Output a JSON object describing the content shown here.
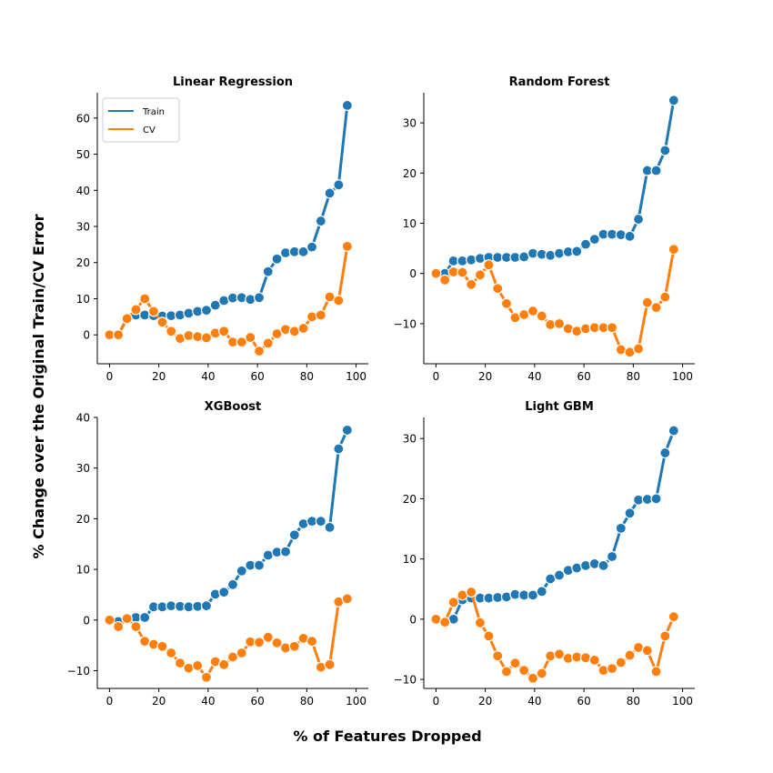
{
  "xlabel": "% of Features Dropped",
  "ylabel": "% Change over the Original Train/CV Error",
  "colors": {
    "train": "#1f77b4",
    "cv": "#ff7f0e"
  },
  "chart_data": [
    {
      "type": "line",
      "title": "Linear Regression",
      "xlim": [
        0,
        100
      ],
      "ylim": [
        -8,
        67
      ],
      "xticks": [
        0,
        20,
        40,
        60,
        80,
        100
      ],
      "yticks": [
        0,
        10,
        20,
        30,
        40,
        50,
        60
      ],
      "legend": "top-left",
      "x": [
        0,
        3.6,
        7.1,
        10.7,
        14.3,
        17.9,
        21.4,
        25,
        28.6,
        32.1,
        35.7,
        39.3,
        42.9,
        46.4,
        50,
        53.6,
        57.1,
        60.7,
        64.3,
        67.9,
        71.4,
        75,
        78.6,
        82.1,
        85.7,
        89.3,
        92.9,
        96.4
      ],
      "series": [
        {
          "name": "Train",
          "values": [
            0,
            0.2,
            4.5,
            5.5,
            5.5,
            5.3,
            5.2,
            5.3,
            5.5,
            6,
            6.5,
            6.8,
            8.2,
            9.5,
            10.2,
            10.3,
            9.8,
            10.3,
            17.5,
            21,
            22.7,
            23,
            23,
            24.3,
            31.5,
            39.2,
            41.5,
            63.5
          ]
        },
        {
          "name": "CV",
          "values": [
            0,
            0,
            4.5,
            7,
            10,
            6.5,
            3.5,
            1,
            -1,
            -0.2,
            -0.5,
            -0.8,
            0.5,
            1,
            -2,
            -2,
            -0.7,
            -4.5,
            -2.3,
            0.3,
            1.5,
            1,
            1.8,
            5,
            5.5,
            10.5,
            9.5,
            24.5
          ]
        }
      ]
    },
    {
      "type": "line",
      "title": "Random Forest",
      "xlim": [
        0,
        100
      ],
      "ylim": [
        -18,
        36
      ],
      "xticks": [
        0,
        20,
        40,
        60,
        80,
        100
      ],
      "yticks": [
        -10,
        0,
        10,
        20,
        30
      ],
      "x": [
        0,
        3.6,
        7.1,
        10.7,
        14.3,
        17.9,
        21.4,
        25,
        28.6,
        32.1,
        35.7,
        39.3,
        42.9,
        46.4,
        50,
        53.6,
        57.1,
        60.7,
        64.3,
        67.9,
        71.4,
        75,
        78.6,
        82.1,
        85.7,
        89.3,
        92.9,
        96.4
      ],
      "series": [
        {
          "name": "Train",
          "values": [
            0,
            0,
            2.5,
            2.5,
            2.7,
            3,
            3.2,
            3.2,
            3.2,
            3.2,
            3.3,
            4,
            3.8,
            3.6,
            4,
            4.3,
            4.4,
            5.8,
            6.8,
            7.8,
            7.8,
            7.7,
            7.4,
            10.8,
            20.5,
            20.5,
            24.5,
            34.5
          ]
        },
        {
          "name": "CV",
          "values": [
            0,
            -1.3,
            0.3,
            0.2,
            -2.2,
            -0.3,
            1.7,
            -3,
            -6,
            -8.8,
            -8.2,
            -7.5,
            -8.5,
            -10.2,
            -10,
            -11,
            -11.5,
            -11,
            -10.8,
            -10.8,
            -10.8,
            -15.2,
            -15.7,
            -15,
            -5.8,
            -6.8,
            -4.7,
            4.8
          ]
        }
      ]
    },
    {
      "type": "line",
      "title": "XGBoost",
      "xlim": [
        0,
        100
      ],
      "ylim": [
        -13.5,
        40
      ],
      "xticks": [
        0,
        20,
        40,
        60,
        80,
        100
      ],
      "yticks": [
        -10,
        0,
        10,
        20,
        30,
        40
      ],
      "x": [
        0,
        3.6,
        7.1,
        10.7,
        14.3,
        17.9,
        21.4,
        25,
        28.6,
        32.1,
        35.7,
        39.3,
        42.9,
        46.4,
        50,
        53.6,
        57.1,
        60.7,
        64.3,
        67.9,
        71.4,
        75,
        78.6,
        82.1,
        85.7,
        89.3,
        92.9,
        96.4
      ],
      "series": [
        {
          "name": "Train",
          "values": [
            0,
            -0.3,
            0.2,
            0.5,
            0.5,
            2.6,
            2.6,
            2.8,
            2.7,
            2.6,
            2.7,
            2.8,
            5.1,
            5.5,
            7,
            9.7,
            10.8,
            10.8,
            12.8,
            13.4,
            13.5,
            16.8,
            19,
            19.5,
            19.5,
            18.3,
            33.8,
            37.5
          ]
        },
        {
          "name": "CV",
          "values": [
            0,
            -1.3,
            0.3,
            -1.3,
            -4.2,
            -4.8,
            -5.2,
            -6.5,
            -8.5,
            -9.5,
            -9,
            -11.3,
            -8.2,
            -8.8,
            -7.3,
            -6.5,
            -4.3,
            -4.4,
            -3.4,
            -4.5,
            -5.5,
            -5.2,
            -3.6,
            -4.2,
            -9.3,
            -8.8,
            3.6,
            4.2
          ]
        }
      ]
    },
    {
      "type": "line",
      "title": "Light GBM",
      "xlim": [
        0,
        100
      ],
      "ylim": [
        -11.5,
        33.5
      ],
      "xticks": [
        0,
        20,
        40,
        60,
        80,
        100
      ],
      "yticks": [
        -10,
        0,
        10,
        20,
        30
      ],
      "x": [
        0,
        3.6,
        7.1,
        10.7,
        14.3,
        17.9,
        21.4,
        25,
        28.6,
        32.1,
        35.7,
        39.3,
        42.9,
        46.4,
        50,
        53.6,
        57.1,
        60.7,
        64.3,
        67.9,
        71.4,
        75,
        78.6,
        82.1,
        85.7,
        89.3,
        92.9,
        96.4
      ],
      "series": [
        {
          "name": "Train",
          "values": [
            0,
            -0.3,
            0,
            3.2,
            3.5,
            3.5,
            3.5,
            3.6,
            3.7,
            4.1,
            4,
            4,
            4.6,
            6.7,
            7.3,
            8.1,
            8.5,
            8.9,
            9.2,
            8.9,
            10.4,
            15.1,
            17.6,
            19.8,
            19.9,
            20,
            27.6,
            31.3
          ]
        },
        {
          "name": "CV",
          "values": [
            0,
            -0.5,
            2.8,
            4,
            4.5,
            -0.6,
            -2.8,
            -6.1,
            -8.7,
            -7.3,
            -8.5,
            -9.8,
            -9,
            -6.1,
            -5.8,
            -6.5,
            -6.3,
            -6.4,
            -6.8,
            -8.5,
            -8.2,
            -7.2,
            -6,
            -4.7,
            -5.2,
            -8.7,
            -2.8,
            0.4
          ]
        }
      ]
    }
  ]
}
